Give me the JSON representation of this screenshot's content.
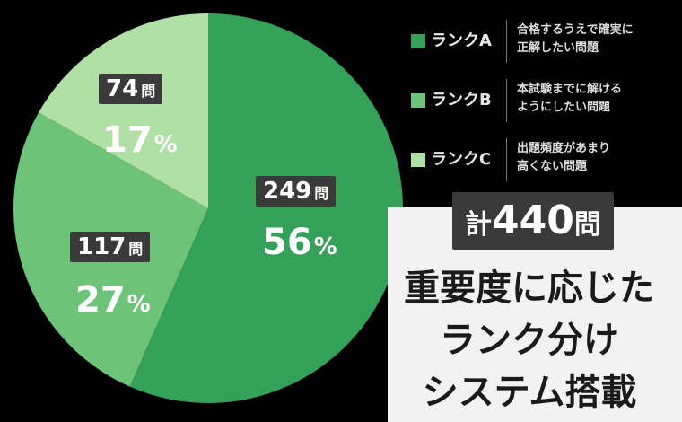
{
  "chart_data": {
    "type": "pie",
    "slices": [
      {
        "label": "ランクA",
        "value": 249,
        "percent": 56,
        "color": "#35a058"
      },
      {
        "label": "ランクB",
        "value": 117,
        "percent": 27,
        "color": "#6dc377"
      },
      {
        "label": "ランクC",
        "value": 74,
        "percent": 17,
        "color": "#b0e0a6"
      }
    ],
    "unit": "問",
    "percent_sign": "%"
  },
  "labels": {
    "a": {
      "count": "249",
      "unit": "問",
      "percent": "56",
      "sign": "%"
    },
    "b": {
      "count": "117",
      "unit": "問",
      "percent": "27",
      "sign": "%"
    },
    "c": {
      "count": "74",
      "unit": "問",
      "percent": "17",
      "sign": "%"
    }
  },
  "legend": [
    {
      "label": "ランクA",
      "description_line1": "合格するうえで確実に",
      "description_line2": "正解したい問題",
      "color": "#35a058"
    },
    {
      "label": "ランクB",
      "description_line1": "本試験までに解ける",
      "description_line2": "ようにしたい問題",
      "color": "#6dc377"
    },
    {
      "label": "ランクC",
      "description_line1": "出題頻度があまり",
      "description_line2": "高くない問題",
      "color": "#b0e0a6"
    }
  ],
  "total": {
    "prefix": "計",
    "number": "440",
    "suffix": "問"
  },
  "headline": {
    "line1": "重要度に応じた",
    "line2": "ランク分け",
    "line3": "システム搭載"
  }
}
